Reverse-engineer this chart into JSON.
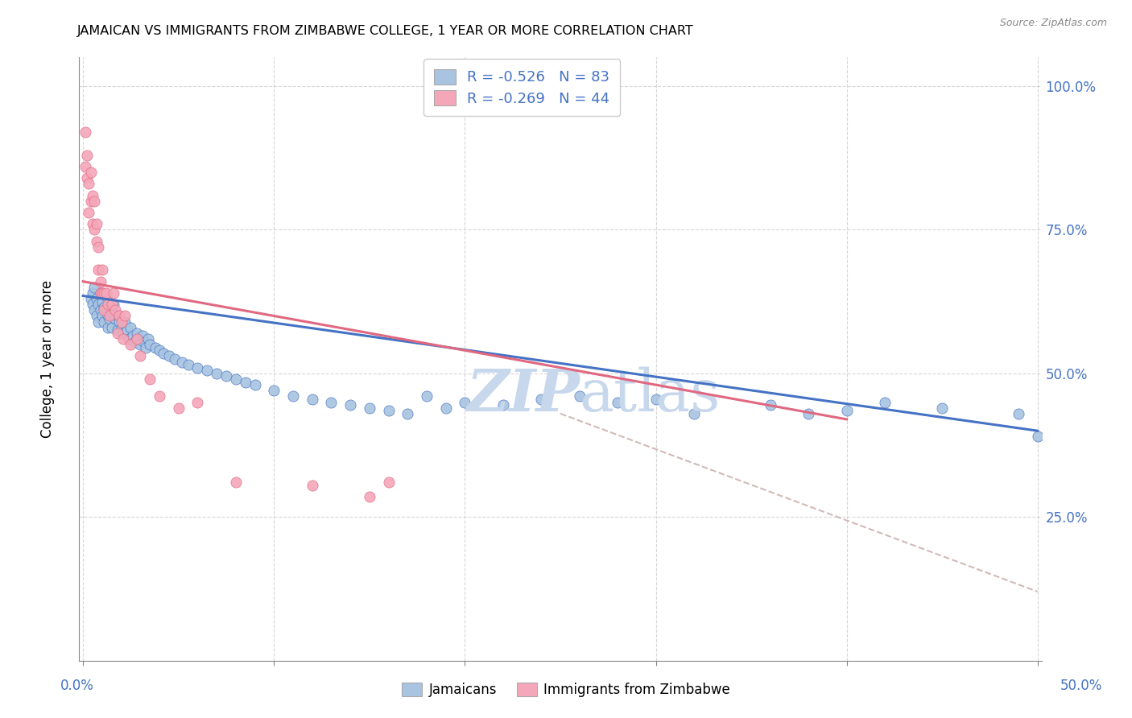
{
  "title": "JAMAICAN VS IMMIGRANTS FROM ZIMBABWE COLLEGE, 1 YEAR OR MORE CORRELATION CHART",
  "source": "Source: ZipAtlas.com",
  "ylabel": "College, 1 year or more",
  "legend_jamaicans": "Jamaicans",
  "legend_zimbabwe": "Immigrants from Zimbabwe",
  "legend_r1": "R = -0.526",
  "legend_n1": "N = 83",
  "legend_r2": "R = -0.269",
  "legend_n2": "N = 44",
  "color_blue_fill": "#a8c4e0",
  "color_pink_fill": "#f4a7b9",
  "color_blue_line": "#4472c4",
  "color_pink_line": "#e06880",
  "color_blue_text": "#4472c4",
  "color_dashed": "#c8a8a8",
  "color_grid": "#cccccc",
  "color_watermark": "#c8d8ec",
  "blue_scatter_x": [
    0.004,
    0.005,
    0.005,
    0.006,
    0.006,
    0.007,
    0.007,
    0.008,
    0.008,
    0.009,
    0.009,
    0.01,
    0.01,
    0.011,
    0.011,
    0.012,
    0.012,
    0.013,
    0.013,
    0.014,
    0.014,
    0.015,
    0.015,
    0.016,
    0.016,
    0.017,
    0.018,
    0.018,
    0.019,
    0.02,
    0.021,
    0.022,
    0.023,
    0.024,
    0.025,
    0.026,
    0.027,
    0.028,
    0.029,
    0.03,
    0.031,
    0.032,
    0.033,
    0.034,
    0.035,
    0.038,
    0.04,
    0.042,
    0.045,
    0.048,
    0.052,
    0.055,
    0.06,
    0.065,
    0.07,
    0.075,
    0.08,
    0.085,
    0.09,
    0.1,
    0.11,
    0.12,
    0.13,
    0.14,
    0.15,
    0.16,
    0.17,
    0.18,
    0.19,
    0.2,
    0.22,
    0.24,
    0.26,
    0.28,
    0.3,
    0.32,
    0.36,
    0.38,
    0.4,
    0.42,
    0.45,
    0.49,
    0.5
  ],
  "blue_scatter_y": [
    0.63,
    0.62,
    0.64,
    0.61,
    0.65,
    0.6,
    0.63,
    0.59,
    0.62,
    0.61,
    0.64,
    0.6,
    0.625,
    0.615,
    0.59,
    0.61,
    0.635,
    0.6,
    0.58,
    0.595,
    0.615,
    0.605,
    0.58,
    0.6,
    0.62,
    0.595,
    0.575,
    0.6,
    0.59,
    0.58,
    0.57,
    0.59,
    0.575,
    0.56,
    0.58,
    0.565,
    0.555,
    0.57,
    0.56,
    0.55,
    0.565,
    0.555,
    0.545,
    0.56,
    0.55,
    0.545,
    0.54,
    0.535,
    0.53,
    0.525,
    0.52,
    0.515,
    0.51,
    0.505,
    0.5,
    0.495,
    0.49,
    0.485,
    0.48,
    0.47,
    0.46,
    0.455,
    0.45,
    0.445,
    0.44,
    0.435,
    0.43,
    0.46,
    0.44,
    0.45,
    0.445,
    0.455,
    0.46,
    0.45,
    0.455,
    0.43,
    0.445,
    0.43,
    0.435,
    0.45,
    0.44,
    0.43,
    0.39
  ],
  "pink_scatter_x": [
    0.001,
    0.001,
    0.002,
    0.002,
    0.003,
    0.003,
    0.004,
    0.004,
    0.005,
    0.005,
    0.006,
    0.006,
    0.007,
    0.007,
    0.008,
    0.008,
    0.009,
    0.009,
    0.01,
    0.01,
    0.011,
    0.011,
    0.012,
    0.013,
    0.014,
    0.015,
    0.016,
    0.017,
    0.018,
    0.019,
    0.02,
    0.021,
    0.022,
    0.025,
    0.028,
    0.03,
    0.035,
    0.04,
    0.05,
    0.06,
    0.08,
    0.12,
    0.15,
    0.16
  ],
  "pink_scatter_y": [
    0.92,
    0.86,
    0.88,
    0.84,
    0.83,
    0.78,
    0.85,
    0.8,
    0.81,
    0.76,
    0.8,
    0.75,
    0.76,
    0.73,
    0.68,
    0.72,
    0.66,
    0.64,
    0.64,
    0.68,
    0.64,
    0.61,
    0.64,
    0.62,
    0.6,
    0.62,
    0.64,
    0.61,
    0.57,
    0.6,
    0.59,
    0.56,
    0.6,
    0.55,
    0.56,
    0.53,
    0.49,
    0.46,
    0.44,
    0.45,
    0.31,
    0.305,
    0.285,
    0.31
  ],
  "blue_line_x": [
    0.0,
    0.5
  ],
  "blue_line_y": [
    0.635,
    0.4
  ],
  "pink_line_x": [
    0.0,
    0.4
  ],
  "pink_line_y": [
    0.66,
    0.42
  ],
  "dashed_line_x": [
    0.25,
    0.5
  ],
  "dashed_line_y": [
    0.43,
    0.12
  ],
  "xlim": [
    -0.002,
    0.502
  ],
  "ylim": [
    0.0,
    1.05
  ],
  "xaxis_left_label": "0.0%",
  "xaxis_right_label": "50.0%",
  "yaxis_tick_vals": [
    0.25,
    0.5,
    0.75,
    1.0
  ],
  "yaxis_tick_labels": [
    "25.0%",
    "50.0%",
    "75.0%",
    "100.0%"
  ]
}
